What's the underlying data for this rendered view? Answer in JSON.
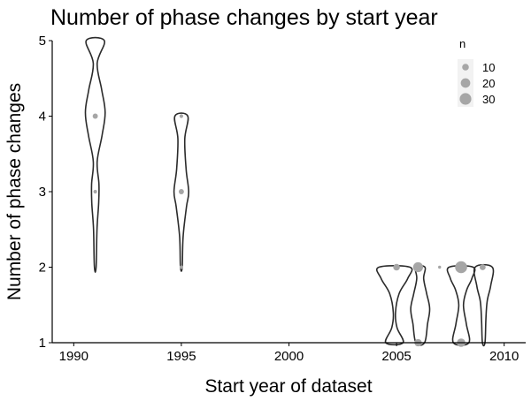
{
  "chart_data": {
    "type": "violin",
    "title": "Number of phase changes by start year",
    "xlabel": "Start year of dataset",
    "ylabel": "Number of phase changes",
    "xlim": [
      1989,
      2011
    ],
    "ylim": [
      1,
      5
    ],
    "x_ticks": [
      1990,
      1995,
      2000,
      2005,
      2010
    ],
    "y_ticks": [
      1,
      2,
      3,
      4,
      5
    ],
    "grid": false,
    "legend": {
      "title": "n",
      "placement": "top-right",
      "sizes": [
        10,
        20,
        30
      ]
    },
    "point_color": "#a6a6a6",
    "violin_stroke": "#2b2b2b",
    "violins": [
      {
        "x": 1991,
        "ymin": 2,
        "ymax": 5,
        "profile": [
          [
            2,
            0.04
          ],
          [
            2.5,
            0.08
          ],
          [
            2.85,
            0.16
          ],
          [
            3.1,
            0.17
          ],
          [
            3.4,
            0.09
          ],
          [
            3.75,
            0.32
          ],
          [
            4.05,
            0.46
          ],
          [
            4.35,
            0.3
          ],
          [
            4.7,
            0.09
          ],
          [
            5,
            0.42
          ]
        ]
      },
      {
        "x": 1995,
        "ymin": 2,
        "ymax": 4,
        "profile": [
          [
            2,
            0.04
          ],
          [
            2.4,
            0.08
          ],
          [
            2.8,
            0.24
          ],
          [
            3.0,
            0.34
          ],
          [
            3.3,
            0.22
          ],
          [
            3.7,
            0.16
          ],
          [
            4,
            0.3
          ]
        ]
      },
      {
        "x": 2004.9,
        "ymin": 1,
        "ymax": 2,
        "profile": [
          [
            1,
            0.4
          ],
          [
            1.2,
            0.12
          ],
          [
            1.4,
            0.05
          ],
          [
            1.65,
            0.22
          ],
          [
            1.85,
            0.62
          ],
          [
            2,
            0.72
          ]
        ]
      },
      {
        "x": 2006.1,
        "ymin": 1,
        "ymax": 2,
        "profile": [
          [
            1,
            0.2
          ],
          [
            1.25,
            0.34
          ],
          [
            1.45,
            0.44
          ],
          [
            1.65,
            0.3
          ],
          [
            1.85,
            0.16
          ],
          [
            2,
            0.22
          ]
        ]
      },
      {
        "x": 2008.0,
        "ymin": 1,
        "ymax": 2,
        "profile": [
          [
            1,
            0.36
          ],
          [
            1.25,
            0.24
          ],
          [
            1.5,
            0.11
          ],
          [
            1.7,
            0.26
          ],
          [
            1.85,
            0.5
          ],
          [
            2,
            0.56
          ]
        ]
      },
      {
        "x": 2009.05,
        "ymin": 1,
        "ymax": 2,
        "profile": [
          [
            1,
            0.06
          ],
          [
            1.3,
            0.1
          ],
          [
            1.55,
            0.16
          ],
          [
            1.75,
            0.32
          ],
          [
            2,
            0.4
          ]
        ]
      }
    ],
    "points": [
      {
        "x": 1991,
        "y": 4,
        "n": 6
      },
      {
        "x": 1991,
        "y": 3,
        "n": 3
      },
      {
        "x": 1995,
        "y": 4,
        "n": 3
      },
      {
        "x": 1995,
        "y": 3,
        "n": 6
      },
      {
        "x": 1995,
        "y": 2,
        "n": 3
      },
      {
        "x": 2005,
        "y": 2,
        "n": 10
      },
      {
        "x": 2006,
        "y": 2,
        "n": 22
      },
      {
        "x": 2006,
        "y": 1,
        "n": 12
      },
      {
        "x": 2007,
        "y": 2,
        "n": 2
      },
      {
        "x": 2008,
        "y": 2,
        "n": 32
      },
      {
        "x": 2008,
        "y": 1,
        "n": 16
      },
      {
        "x": 2009,
        "y": 2,
        "n": 8
      }
    ]
  }
}
